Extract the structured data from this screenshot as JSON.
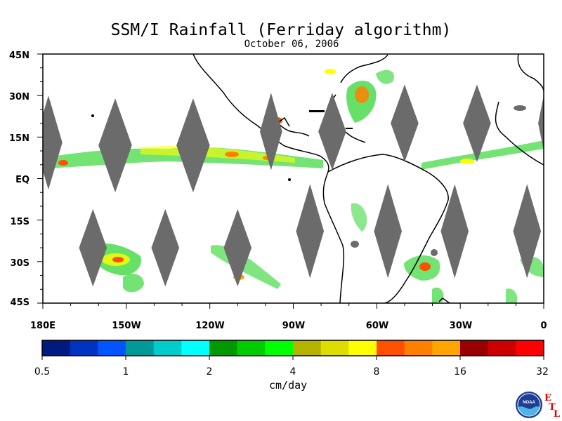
{
  "title": "SSM/I Rainfall (Ferriday algorithm)",
  "date": "October 06, 2006",
  "y_axis_labels": [
    "45N",
    "30N",
    "15N",
    "EQ",
    "15S",
    "30S",
    "45S"
  ],
  "x_axis_labels": [
    "180E",
    "150W",
    "120W",
    "90W",
    "60W",
    "30W",
    "0"
  ],
  "colorbar": {
    "tick_labels": [
      "0.5",
      "1",
      "2",
      "4",
      "8",
      "16",
      "32"
    ],
    "unit_label": "cm/day",
    "colors": [
      "#001a80",
      "#0033c0",
      "#0055ff",
      "#009999",
      "#00cccc",
      "#00ffff",
      "#009900",
      "#00cc00",
      "#00ff00",
      "#b3b300",
      "#dddd00",
      "#ffff00",
      "#ff5000",
      "#ff8000",
      "#ffa500",
      "#990000",
      "#cc0000",
      "#ff0000"
    ]
  },
  "map_extent": {
    "lon_min": -180,
    "lon_max": 0,
    "lat_min": -45,
    "lat_max": 45
  },
  "no_data_color": "#6b6b6b",
  "logo": {
    "text": "NOAA",
    "letters": [
      "E",
      "T",
      "L"
    ]
  }
}
